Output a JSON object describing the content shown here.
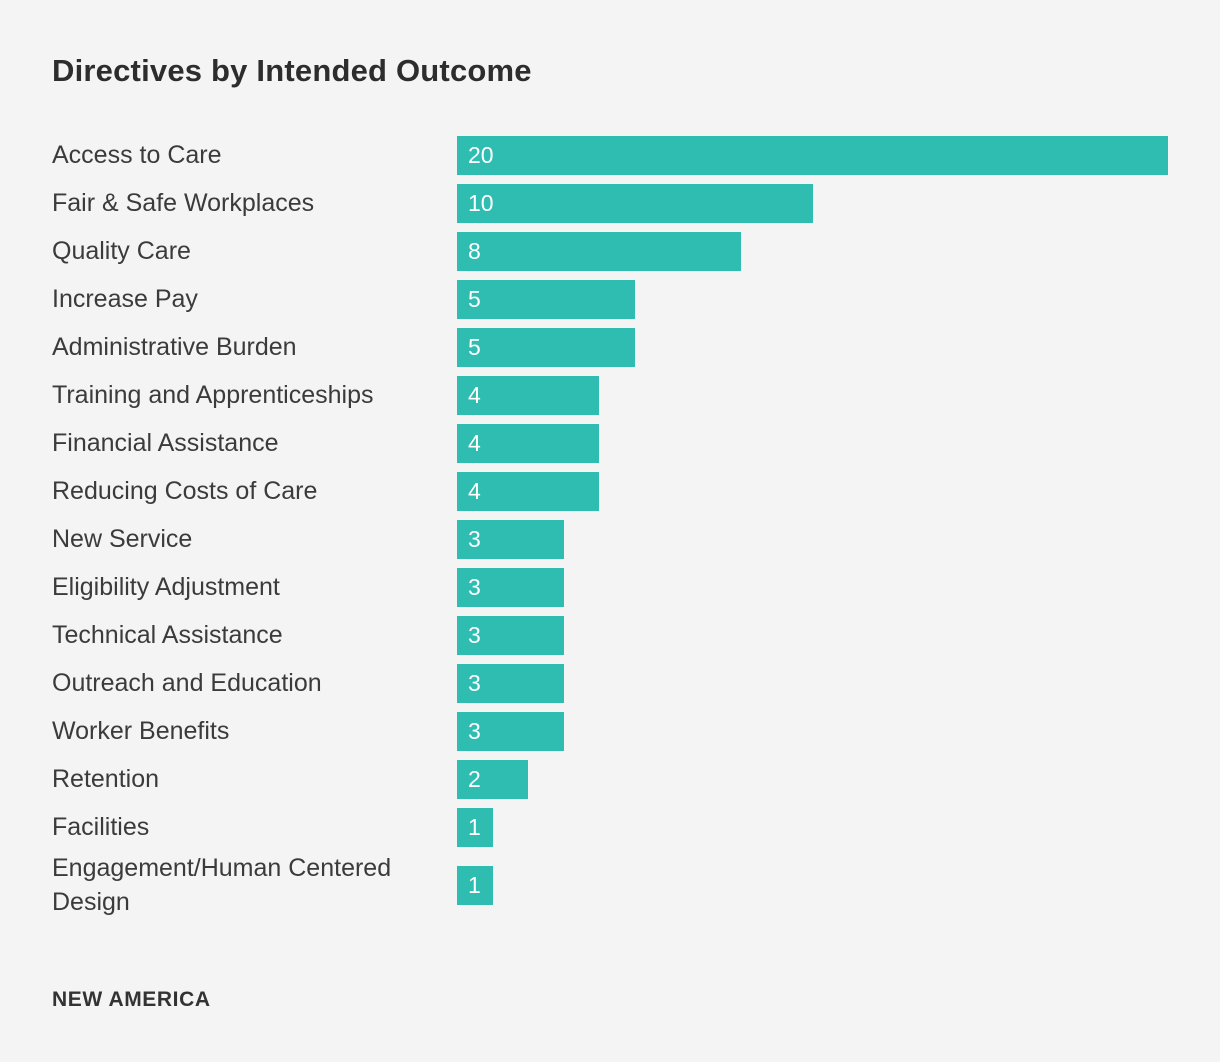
{
  "title": "Directives by Intended Outcome",
  "footer": {
    "brand": "NEW AMERICA"
  },
  "colors": {
    "background": "#f4f4f4",
    "bar": "#2fbcb1",
    "title_text": "#2d2d2d",
    "label_text": "#3b3b3b",
    "value_text": "#ffffff",
    "footer_text": "#333333"
  },
  "chart_data": {
    "type": "bar",
    "orientation": "horizontal",
    "title": "Directives by Intended Outcome",
    "xlabel": "",
    "ylabel": "",
    "xlim": [
      0,
      20
    ],
    "grid": false,
    "legend": false,
    "value_labels_position": "inside-left",
    "categories": [
      "Access to Care",
      "Fair & Safe Workplaces",
      "Quality Care",
      "Increase Pay",
      "Administrative Burden",
      "Training and Apprenticeships",
      "Financial Assistance",
      "Reducing Costs of Care",
      "New Service",
      "Eligibility Adjustment",
      "Technical Assistance",
      "Outreach and Education",
      "Worker Benefits",
      "Retention",
      "Facilities",
      "Engagement/Human Centered Design"
    ],
    "values": [
      20,
      10,
      8,
      5,
      5,
      4,
      4,
      4,
      3,
      3,
      3,
      3,
      3,
      2,
      1,
      1
    ]
  }
}
